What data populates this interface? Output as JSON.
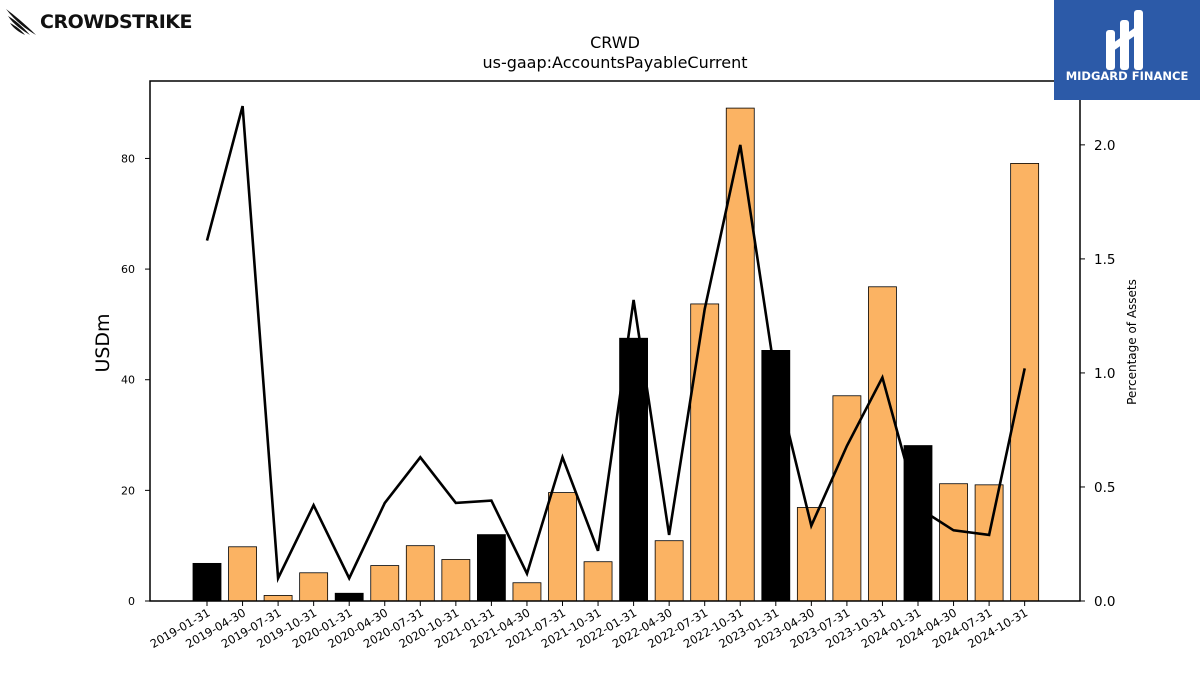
{
  "branding": {
    "left_logo": {
      "text": "CROWDSTRIKE",
      "icon": "falcon-icon"
    },
    "right_logo": {
      "text": "MIDGARD FINANCE",
      "icon": "midgard-m-icon",
      "background": "#2c5aa8"
    }
  },
  "chart_data": {
    "type": "bar",
    "title": "CRWD",
    "subtitle": "us-gaap:AccountsPayableCurrent",
    "ylabel": "USDm",
    "y2label": "Percentage of Assets",
    "ylim": [
      0,
      94
    ],
    "y2lim": [
      0,
      2.28
    ],
    "yticks": [
      0,
      20,
      40,
      60,
      80
    ],
    "y2ticks": [
      "0.0",
      "0.5",
      "1.0",
      "1.5",
      "2.0"
    ],
    "categories": [
      "2019-01-31",
      "2019-04-30",
      "2019-07-31",
      "2019-10-31",
      "2020-01-31",
      "2020-04-30",
      "2020-07-31",
      "2020-10-31",
      "2021-01-31",
      "2021-04-30",
      "2021-07-31",
      "2021-10-31",
      "2022-01-31",
      "2022-04-30",
      "2022-07-31",
      "2022-10-31",
      "2023-01-31",
      "2023-04-30",
      "2023-07-31",
      "2023-10-31",
      "2024-01-31",
      "2024-04-30",
      "2024-07-31",
      "2024-10-31"
    ],
    "series": [
      {
        "kind": "bar",
        "values": [
          6.8,
          9.8,
          1.0,
          5.1,
          1.4,
          6.4,
          10.0,
          7.5,
          12.0,
          3.3,
          19.6,
          7.1,
          47.5,
          10.9,
          53.7,
          89.1,
          45.3,
          16.9,
          37.1,
          56.8,
          28.1,
          21.2,
          21.0,
          79.1
        ]
      },
      {
        "kind": "line",
        "axis": "right",
        "values": [
          1.58,
          2.17,
          0.1,
          0.42,
          0.1,
          0.43,
          0.63,
          0.43,
          0.44,
          0.12,
          0.63,
          0.22,
          1.32,
          0.29,
          1.28,
          2.0,
          0.97,
          0.33,
          0.68,
          0.98,
          0.41,
          0.31,
          0.29,
          1.02
        ]
      }
    ],
    "bar_colors": {
      "fiscal_year_end": "#000000",
      "quarter": "#fbb363"
    },
    "highlighted_quarters": [
      "2019-01-31",
      "2020-01-31",
      "2021-01-31",
      "2022-01-31",
      "2023-01-31",
      "2024-01-31"
    ],
    "line_color": "#000000",
    "grid": false,
    "legend": "none"
  }
}
